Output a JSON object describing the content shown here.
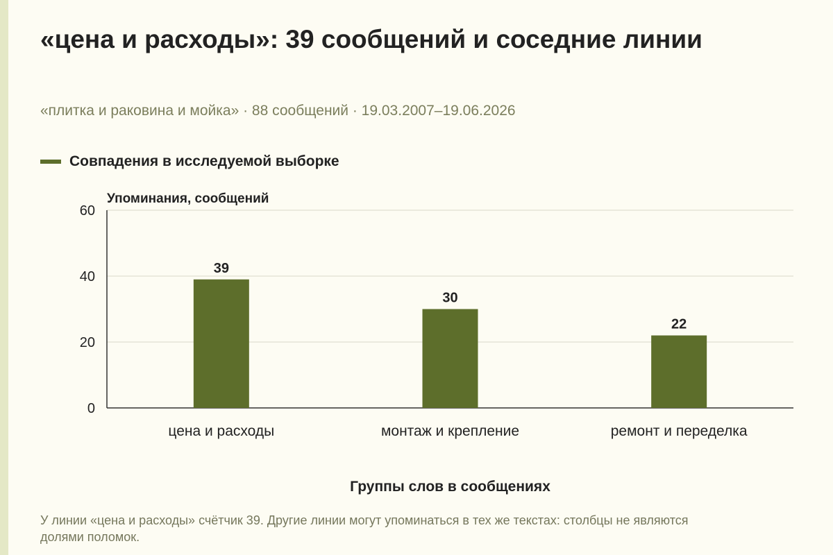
{
  "title": "«цена и расходы»: 39 сообщений и соседние линии",
  "subtitle": "«плитка и раковина и мойка» · 88 сообщений · 19.03.2007–19.06.2026",
  "caption": "У линии «цена и расходы» счётчик 39. Другие линии могут упоминаться в тех же текстах: столбцы не являются долями поломок.",
  "colors": {
    "bar": "#5d6e2b",
    "grid": "#d9d9c8",
    "axis": "#333333"
  },
  "chart_data": {
    "type": "bar",
    "categories": [
      "цена и расходы",
      "монтаж и крепление",
      "ремонт и переделка"
    ],
    "series": [
      {
        "name": "Совпадения в исследуемой выборке",
        "values": [
          39,
          30,
          22
        ]
      }
    ],
    "data_labels": [
      "39",
      "30",
      "22"
    ],
    "ylabel": "Упоминания, сообщений",
    "xlabel": "Группы слов в сообщениях",
    "ylim": [
      0,
      60
    ],
    "yticks": [
      0,
      20,
      40,
      60
    ],
    "grid": true,
    "legend": "top-left"
  }
}
